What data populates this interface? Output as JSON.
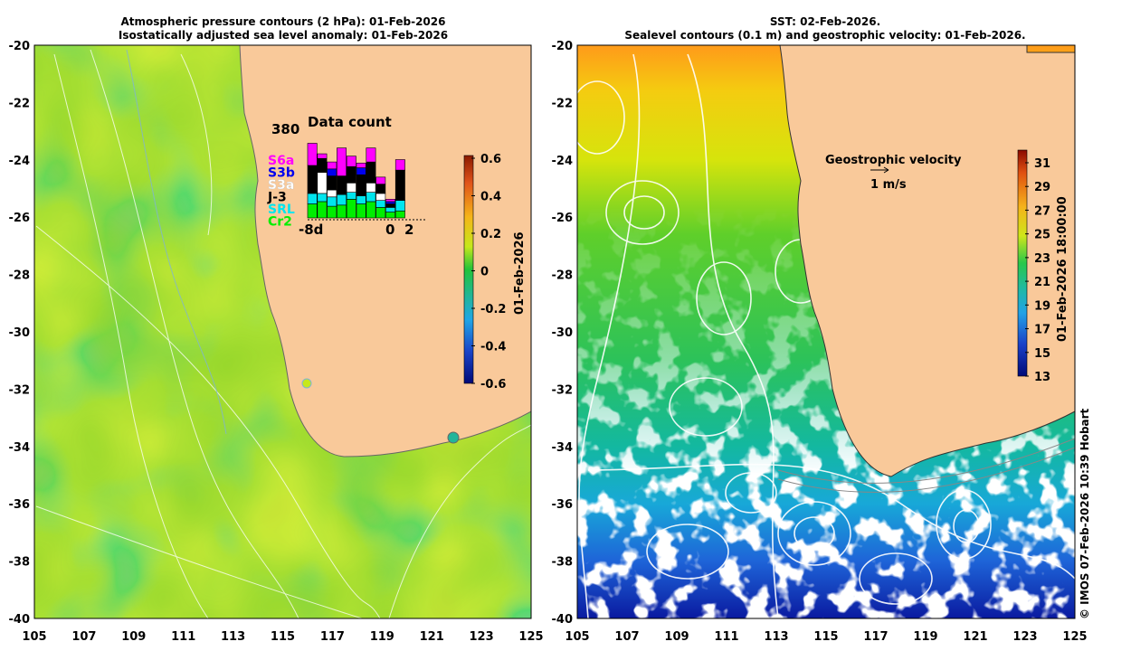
{
  "left_panel": {
    "title_line1": "Atmospheric pressure contours (2 hPa): 01-Feb-2026",
    "title_line2": "Isostatically adjusted sea level anomaly: 01-Feb-2026",
    "colorbar": {
      "label": "01-Feb-2026",
      "ticks": [
        "0.6",
        "0.4",
        "0.2",
        "0",
        "-0.2",
        "-0.4",
        "-0.6"
      ],
      "range": [
        -0.6,
        0.6
      ]
    },
    "inset": {
      "max_label": "380",
      "title": "Data count",
      "missions": [
        {
          "name": "S6a",
          "color": "#ff00ff"
        },
        {
          "name": "S3b",
          "color": "#0000ee"
        },
        {
          "name": "S3a",
          "color": "#ffffff"
        },
        {
          "name": "J-3",
          "color": "#000000"
        },
        {
          "name": "SRL",
          "color": "#00e5ee"
        },
        {
          "name": "Cr2",
          "color": "#00ee00"
        }
      ],
      "x_left": "-8d",
      "x_zero": "0",
      "x_right": "2",
      "bars": [
        {
          "Cr2": 60,
          "SRL": 45,
          "S3a": 0,
          "J-3": 120,
          "S3b": 0,
          "S6a": 95
        },
        {
          "Cr2": 70,
          "SRL": 35,
          "S3a": 90,
          "J-3": 60,
          "S3b": 0,
          "S6a": 20
        },
        {
          "Cr2": 50,
          "SRL": 40,
          "S3a": 30,
          "J-3": 60,
          "S3b": 30,
          "S6a": 30
        },
        {
          "Cr2": 55,
          "SRL": 45,
          "S3a": 0,
          "J-3": 80,
          "S3b": 0,
          "S6a": 120
        },
        {
          "Cr2": 80,
          "SRL": 30,
          "S3a": 40,
          "J-3": 70,
          "S3b": 0,
          "S6a": 45
        },
        {
          "Cr2": 60,
          "SRL": 35,
          "S3a": 0,
          "J-3": 90,
          "S3b": 30,
          "S6a": 20
        },
        {
          "Cr2": 70,
          "SRL": 40,
          "S3a": 40,
          "J-3": 90,
          "S3b": 0,
          "S6a": 60
        },
        {
          "Cr2": 45,
          "SRL": 30,
          "S3a": 30,
          "J-3": 40,
          "S3b": 0,
          "S6a": 30
        },
        {
          "Cr2": 25,
          "SRL": 20,
          "S3a": 0,
          "J-3": 15,
          "S3b": 10,
          "S6a": 10
        },
        {
          "Cr2": 30,
          "SRL": 45,
          "S3a": 0,
          "J-3": 130,
          "S3b": 0,
          "S6a": 45
        }
      ]
    }
  },
  "right_panel": {
    "title_line1": "SST: 02-Feb-2026.",
    "title_line2": "Sealevel contours (0.1 m) and geostrophic velocity: 01-Feb-2026.",
    "velocity_label": "Geostrophic velocity",
    "velocity_scale": "1 m/s",
    "colorbar": {
      "label": "01-Feb-2026 18:00:00",
      "ticks": [
        "31",
        "29",
        "27",
        "25",
        "23",
        "21",
        "19",
        "17",
        "15",
        "13"
      ],
      "range": [
        13,
        32
      ]
    }
  },
  "axes": {
    "x_ticks": [
      "105",
      "107",
      "109",
      "111",
      "113",
      "115",
      "117",
      "119",
      "121",
      "123",
      "125"
    ],
    "y_ticks": [
      "-20",
      "-22",
      "-24",
      "-26",
      "-28",
      "-30",
      "-32",
      "-34",
      "-36",
      "-38",
      "-40"
    ]
  },
  "credit": "© IMOS 07-Feb-2026 10:39 Hobart",
  "colors": {
    "land": "#f9c99a",
    "coast": "#888888",
    "contour": "#ffffff"
  }
}
